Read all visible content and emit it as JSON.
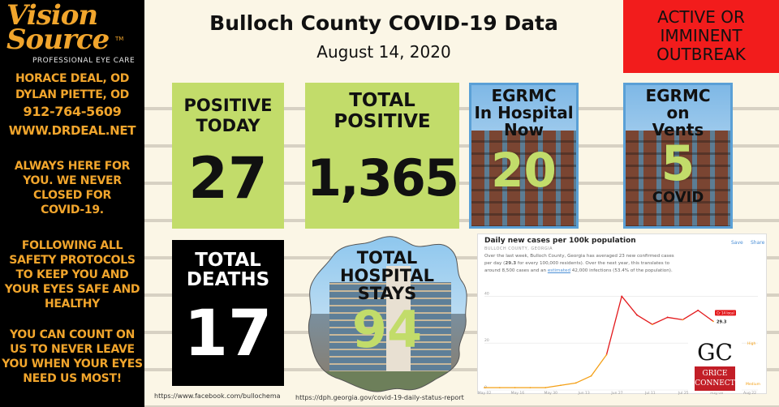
{
  "sidebar": {
    "brand_top": "Vision",
    "brand_bottom": "Source",
    "trademark": "TM",
    "tagline": "PROFESSIONAL EYE CARE",
    "doctor1": "HORACE DEAL, OD",
    "doctor2": "DYLAN PIETTE, OD",
    "phone": "912-764-5609",
    "website": "WWW.DRDEAL.NET",
    "msg1": [
      "ALWAYS HERE FOR",
      "YOU.  WE NEVER",
      "CLOSED FOR",
      "COVID-19."
    ],
    "msg2": [
      "FOLLOWING ALL",
      "SAFETY PROTOCOLS",
      "TO KEEP YOU AND",
      "YOUR EYES SAFE AND",
      "HEALTHY"
    ],
    "msg3": [
      "YOU CAN COUNT ON",
      "US TO NEVER LEAVE",
      "YOU WHEN YOUR EYES",
      "NEED US MOST!"
    ]
  },
  "header": {
    "title": "Bulloch County COVID-19 Data",
    "date": "August 14, 2020",
    "alert": [
      "ACTIVE OR",
      "IMMINENT",
      "OUTBREAK"
    ]
  },
  "stats": {
    "positive_today": {
      "label1": "POSITIVE",
      "label2": "TODAY",
      "value": "27"
    },
    "total_positive": {
      "label1": "TOTAL",
      "label2": "POSITIVE",
      "value": "1,365"
    },
    "in_hospital": {
      "label1": "EGRMC",
      "label2": "In Hospital",
      "label3": "Now",
      "value": "20"
    },
    "on_vents": {
      "label1": "EGRMC",
      "label2": "on",
      "label3": "Vents",
      "value": "5",
      "sub": "COVID"
    },
    "deaths": {
      "label1": "TOTAL",
      "label2": "DEATHS",
      "value": "17"
    },
    "hospital_stays": {
      "label1": "TOTAL",
      "label2": "HOSPITAL",
      "label3": "STAYS",
      "value": "94"
    }
  },
  "chart": {
    "title": "Daily new cases per 100k population",
    "subtitle": "BULLOCH COUNTY, GEORGIA",
    "save": "Save",
    "share": "Share",
    "desc1": "Over the last week, Bulloch County, Georgia has averaged 23 new confirmed cases",
    "desc2_a": "per day (",
    "desc2_b": "29.3",
    "desc2_c": " for every 100,000 residents). Over the next year, this translates to",
    "desc3_a": "around 8,500 cases and an ",
    "desc3_link": "estimated",
    "desc3_b": " 42,000 infections (53.4% of the population).",
    "end_tag": "Cr 14 local",
    "end_value": "29.3",
    "level_high": "High",
    "level_medium": "Medium",
    "colors": {
      "low": "#f4a017",
      "high": "#e3191c",
      "accent": "#4b8fd6"
    }
  },
  "chart_data": {
    "type": "line",
    "title": "Daily new cases per 100k population",
    "x": [
      "May 02",
      "May 09",
      "May 16",
      "May 23",
      "May 30",
      "Jun 06",
      "Jun 13",
      "Jun 20",
      "Jun 27",
      "Jul 04",
      "Jul 11",
      "Jul 18",
      "Jul 25",
      "Aug 01",
      "Aug 08",
      "Aug 14"
    ],
    "series": [
      {
        "values": [
          1,
          1,
          1,
          1,
          1,
          2,
          3,
          6,
          15,
          40,
          32,
          28,
          31,
          30,
          34,
          29.3
        ]
      }
    ],
    "xticks": [
      "May 02",
      "May 16",
      "May 30",
      "Jun 13",
      "Jun 27",
      "Jul 11",
      "Jul 25",
      "Aug 08",
      "Aug 22"
    ],
    "ylim": [
      0,
      45
    ],
    "yticks": [
      0,
      20,
      40
    ]
  },
  "branding": {
    "gc_initials": "GC",
    "gc_line1": "GRICE",
    "gc_line2": "CONNECT"
  },
  "footer": {
    "facebook_url": "https://www.facebook.com/bullochema",
    "dph_url": "https://dph.georgia.gov/covid-19-daily-status-report"
  }
}
